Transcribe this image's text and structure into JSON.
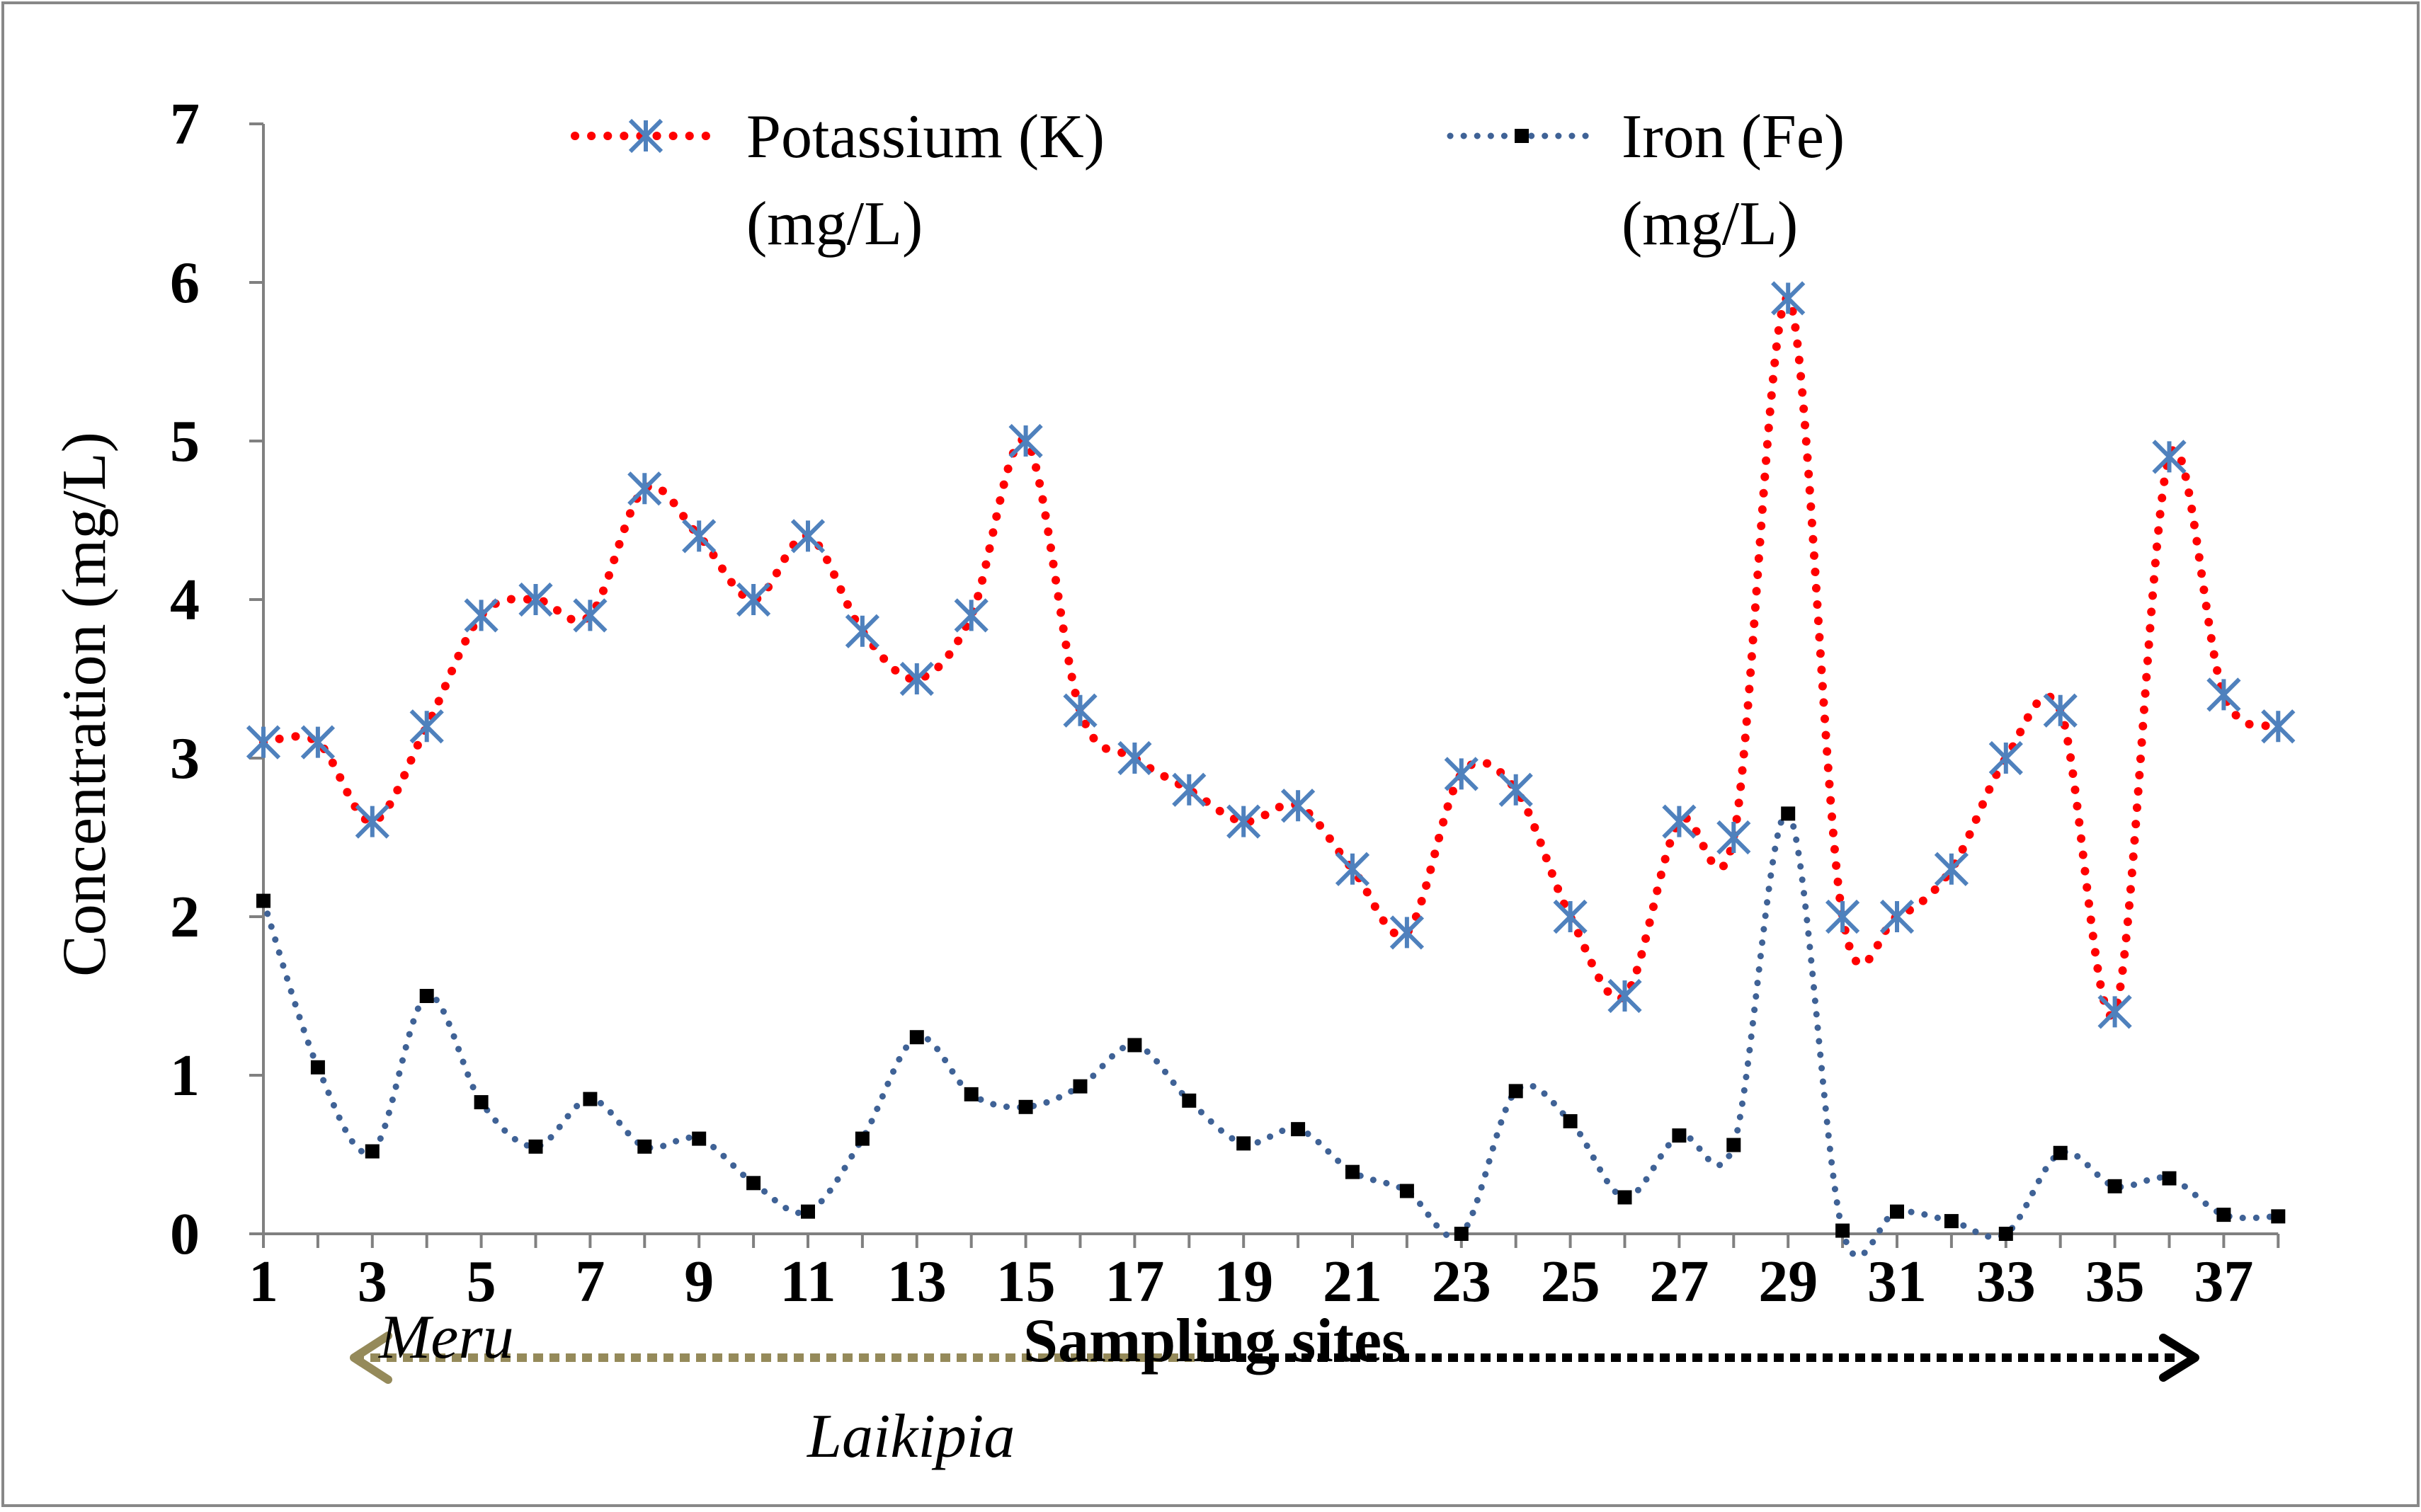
{
  "chart_data": {
    "type": "line",
    "title": "",
    "xlabel": "Sampling sites",
    "ylabel": "Concentration (mg/L)",
    "ylim": [
      0,
      7
    ],
    "yticks": [
      "0",
      "1",
      "2",
      "3",
      "4",
      "5",
      "6",
      "7"
    ],
    "xticks": [
      "1",
      "3",
      "5",
      "7",
      "9",
      "11",
      "13",
      "15",
      "17",
      "19",
      "21",
      "23",
      "25",
      "27",
      "29",
      "31",
      "33",
      "35",
      "37"
    ],
    "x": [
      1,
      2,
      3,
      4,
      5,
      6,
      7,
      8,
      9,
      10,
      11,
      12,
      13,
      14,
      15,
      16,
      17,
      18,
      19,
      20,
      21,
      22,
      23,
      24,
      25,
      26,
      27,
      28,
      29,
      30,
      31,
      32,
      33,
      34,
      35,
      36,
      37,
      38
    ],
    "series": [
      {
        "name": "Potassium (K) (mg/L)",
        "legend_line1": "Potassium (K)",
        "legend_line2": "(mg/L)",
        "values": [
          3.1,
          3.1,
          2.6,
          3.2,
          3.9,
          4.0,
          3.9,
          4.7,
          4.4,
          4.0,
          4.4,
          3.8,
          3.5,
          3.9,
          5.0,
          3.3,
          3.0,
          2.8,
          2.6,
          2.7,
          2.3,
          1.9,
          2.9,
          2.8,
          2.0,
          1.5,
          2.6,
          2.5,
          5.9,
          2.0,
          2.0,
          2.3,
          3.0,
          3.3,
          1.4,
          4.9,
          3.4,
          3.2
        ]
      },
      {
        "name": "Iron (Fe) (mg/L)",
        "legend_line1": "Iron (Fe)",
        "legend_line2": "(mg/L)",
        "values": [
          2.1,
          1.05,
          0.52,
          1.5,
          0.83,
          0.55,
          0.85,
          0.55,
          0.6,
          0.32,
          0.14,
          0.6,
          1.24,
          0.88,
          0.8,
          0.93,
          1.19,
          0.84,
          0.57,
          0.66,
          0.39,
          0.27,
          0.0,
          0.9,
          0.71,
          0.23,
          0.62,
          0.56,
          2.65,
          0.02,
          0.14,
          0.08,
          0.0,
          0.51,
          0.3,
          0.35,
          0.12,
          0.11
        ]
      }
    ],
    "colors": {
      "potassium_line": "#ff0000",
      "potassium_marker": "#4f81bd",
      "iron_line": "#3f6296",
      "iron_marker": "#000000",
      "axis": "#808080",
      "meru_arrow": "#958a5a",
      "laikipia_arrow": "#000000"
    },
    "annotations": {
      "meru": "Meru",
      "laikipia": "Laikipia"
    },
    "legend_position": "top"
  }
}
